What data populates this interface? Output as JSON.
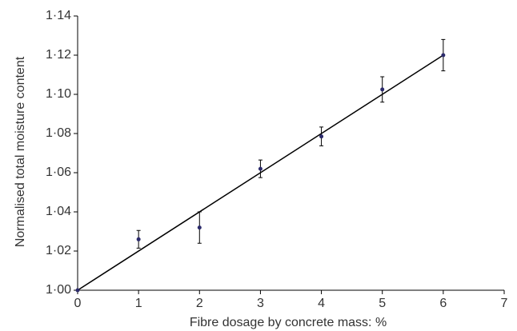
{
  "chart_data": {
    "type": "scatter",
    "x_label": "Fibre dosage by concrete mass: %",
    "y_label": "Normalised total moisture content",
    "x": [
      0,
      1,
      2,
      3,
      4,
      5,
      6
    ],
    "series": [
      {
        "color": "#2b2a6b",
        "values": [
          1.0,
          1.026,
          1.032,
          1.062,
          1.0785,
          1.1025,
          1.12
        ],
        "errors": [
          0,
          0.0045,
          0.008,
          0.0045,
          0.0048,
          0.0065,
          0.008
        ]
      }
    ],
    "trendline": {
      "x": [
        0,
        6
      ],
      "values": [
        1.0,
        1.12
      ],
      "color": "#000000"
    },
    "xlim": [
      0,
      7
    ],
    "xticks": [
      0,
      1,
      2,
      3,
      4,
      5,
      6,
      7
    ],
    "ylim": [
      1.0,
      1.14
    ],
    "yticks": [
      {
        "value": 1.0,
        "label": "1·00"
      },
      {
        "value": 1.02,
        "label": "1·02"
      },
      {
        "value": 1.04,
        "label": "1·04"
      },
      {
        "value": 1.06,
        "label": "1·06"
      },
      {
        "value": 1.08,
        "label": "1·08"
      },
      {
        "value": 1.1,
        "label": "1·10"
      },
      {
        "value": 1.12,
        "label": "1·12"
      },
      {
        "value": 1.14,
        "label": "1·14"
      }
    ]
  }
}
